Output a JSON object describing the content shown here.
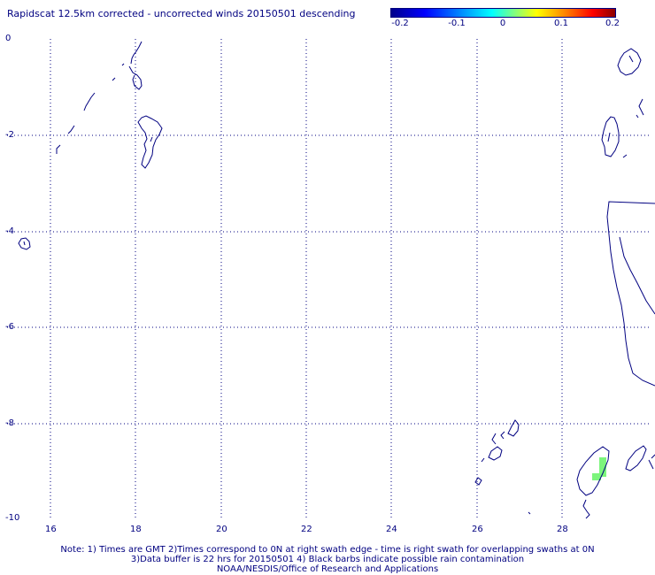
{
  "title": "Rapidscat 12.5km corrected - uncorrected winds 20150501 descending",
  "colorbar": {
    "labels": [
      "-0.2",
      "-0.1",
      "0",
      "0.1",
      "0.2"
    ],
    "colors": [
      "#0000a0",
      "#0000ff",
      "#00ffff",
      "#ffff00",
      "#ff8000",
      "#ff0000",
      "#8b0000"
    ]
  },
  "x_ticks": [
    "16",
    "18",
    "20",
    "22",
    "24",
    "26",
    "28"
  ],
  "y_ticks": [
    "0",
    "-2",
    "-4",
    "-6",
    "-8",
    "-10"
  ],
  "notes": {
    "line1": "Note: 1) Times are GMT 2)Times correspond to 0N at right swath edge - time is right swath for overlapping swaths at 0N",
    "line2": "3)Data buffer is 22 hrs for 20150501 4) Black barbs indicate possible rain contamination",
    "line3": "NOAA/NESDIS/Office of Research and Applications"
  },
  "colors": {
    "text": "#000080",
    "coast": "#000080",
    "grid": "#000080",
    "swath": "#7cf57c"
  }
}
